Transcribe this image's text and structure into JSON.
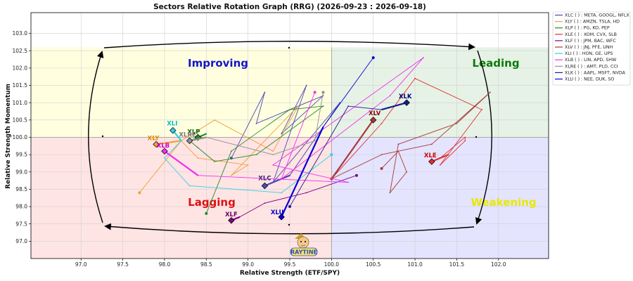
{
  "chart_data": {
    "type": "scatter",
    "title": "Sectors Relative Rotation Graph (RRG) (2026-09-23 : 2026-09-18)",
    "xlabel": "Relative Strength (ETF/SPY)",
    "ylabel": "Relative Strength Momentum",
    "xlim": [
      96.4,
      102.6
    ],
    "ylim": [
      96.5,
      103.6
    ],
    "x_ticks": [
      "97.0",
      "97.5",
      "98.0",
      "98.5",
      "99.0",
      "99.5",
      "100.0",
      "100.5",
      "101.0",
      "101.5",
      "102.0"
    ],
    "y_ticks": [
      "97.0",
      "97.5",
      "98.0",
      "98.5",
      "99.0",
      "99.5",
      "100.0",
      "100.5",
      "101.0",
      "101.5",
      "102.0",
      "102.5",
      "103.0"
    ],
    "center": [
      100,
      100
    ],
    "grid": true,
    "legend_position": "outside-right",
    "quadrants": [
      {
        "name": "Improving",
        "color": "#1414c8",
        "bg": "#ffffe0"
      },
      {
        "name": "Leading",
        "color": "#0a7a0a",
        "bg": "#e6f2e6"
      },
      {
        "name": "Lagging",
        "color": "#dd1111",
        "bg": "#ffe4e4"
      },
      {
        "name": "Weakening",
        "color": "#e8e800",
        "bg": "#e4e4ff"
      }
    ],
    "series": [
      {
        "name": "XLC",
        "legend": "XLC ( ) : META, GOOGL, NFLX",
        "color": "#4a4ab0",
        "label_color": "#222266",
        "points": [
          [
            98.8,
            99.4
          ],
          [
            99.2,
            101.3
          ],
          [
            99.1,
            100.4
          ],
          [
            99.9,
            101.2
          ],
          [
            99.4,
            100.1
          ],
          [
            99.7,
            101.5
          ],
          [
            99.3,
            98.7
          ],
          [
            100.1,
            101.0
          ],
          [
            99.5,
            98.9
          ],
          [
            99.2,
            98.6
          ]
        ]
      },
      {
        "name": "XLY",
        "legend": "XLY ( ) : AMZN, TSLA, HD",
        "color": "#f0a030",
        "label_color": "#e08a00",
        "points": [
          [
            97.7,
            98.4
          ],
          [
            98.2,
            99.9
          ],
          [
            98.4,
            99.4
          ],
          [
            99.0,
            99.2
          ],
          [
            98.8,
            98.9
          ],
          [
            99.6,
            100.9
          ],
          [
            99.3,
            99.6
          ],
          [
            98.6,
            100.5
          ],
          [
            98.2,
            99.9
          ],
          [
            97.9,
            99.8
          ]
        ]
      },
      {
        "name": "XLP",
        "legend": "XLP ( ) : PG, KO, PEP",
        "color": "#228b22",
        "label_color": "#0a6a0a",
        "points": [
          [
            98.5,
            97.8
          ],
          [
            98.8,
            99.6
          ],
          [
            99.5,
            100.8
          ],
          [
            99.9,
            100.9
          ],
          [
            99.1,
            99.5
          ],
          [
            98.6,
            99.3
          ],
          [
            98.4,
            99.7
          ],
          [
            98.3,
            99.9
          ],
          [
            98.5,
            100.1
          ],
          [
            98.4,
            100.0
          ]
        ]
      },
      {
        "name": "XLE",
        "legend": "XLE ( ) : XOM, CVX, SLB",
        "color": "#e03030",
        "label_color": "#cc0000",
        "points": [
          [
            100.0,
            98.8
          ],
          [
            100.6,
            100.4
          ],
          [
            101.0,
            101.7
          ],
          [
            101.8,
            100.8
          ],
          [
            101.3,
            99.2
          ],
          [
            101.6,
            99.9
          ],
          [
            101.6,
            100.0
          ],
          [
            101.3,
            99.4
          ],
          [
            101.4,
            99.5
          ],
          [
            101.2,
            99.3
          ]
        ]
      },
      {
        "name": "XLF",
        "legend": "XLF ( ) : JPM, BAC, WFC",
        "color": "#800080",
        "label_color": "#660066",
        "points": [
          [
            100.3,
            98.9
          ],
          [
            99.7,
            98.4
          ],
          [
            99.2,
            98.1
          ],
          [
            98.9,
            97.7
          ],
          [
            98.8,
            97.6
          ]
        ]
      },
      {
        "name": "XLV",
        "legend": "XLV ( ) : JNJ, PFE, UNH",
        "color": "#a83838",
        "label_color": "#8b0000",
        "points": [
          [
            100.6,
            99.1
          ],
          [
            100.8,
            99.6
          ],
          [
            100.9,
            99.0
          ],
          [
            100.7,
            98.4
          ],
          [
            100.8,
            99.8
          ],
          [
            101.5,
            100.4
          ],
          [
            101.9,
            101.3
          ],
          [
            101.2,
            99.8
          ],
          [
            100.6,
            99.5
          ],
          [
            100.0,
            98.8
          ],
          [
            100.5,
            100.5
          ]
        ]
      },
      {
        "name": "XLI",
        "legend": "XLI ( ) : HON, GE, UPS",
        "color": "#30d0e8",
        "label_color": "#00bcd4",
        "points": [
          [
            100.0,
            99.5
          ],
          [
            99.4,
            98.4
          ],
          [
            98.3,
            98.6
          ],
          [
            98.0,
            99.4
          ],
          [
            98.2,
            99.9
          ],
          [
            98.1,
            100.2
          ]
        ]
      },
      {
        "name": "XLB",
        "legend": "XLB ( ) : LIN, APD, SHW",
        "color": "#f030f0",
        "label_color": "#cc00cc",
        "points": [
          [
            99.8,
            101.3
          ],
          [
            99.4,
            98.8
          ],
          [
            100.7,
            101.2
          ],
          [
            101.1,
            102.3
          ],
          [
            99.3,
            99.2
          ],
          [
            100.2,
            98.7
          ],
          [
            98.4,
            98.9
          ],
          [
            98.0,
            99.6
          ]
        ]
      },
      {
        "name": "XLRE",
        "legend": "XLRE ( ) : AMT, PLD, CCI",
        "color": "#909090",
        "label_color": "#777777",
        "points": [
          [
            99.9,
            101.3
          ],
          [
            99.8,
            99.9
          ],
          [
            99.3,
            99.5
          ],
          [
            98.5,
            100.0
          ],
          [
            98.3,
            99.9
          ]
        ]
      },
      {
        "name": "XLK",
        "legend": "XLK ( ) : AAPL, MSFT, NVDA",
        "color": "#1c1c8c",
        "label_color": "#000080",
        "points": [
          [
            99.5,
            98.0
          ],
          [
            100.2,
            100.9
          ],
          [
            100.6,
            100.8
          ],
          [
            100.9,
            101.0
          ]
        ]
      },
      {
        "name": "XLU",
        "legend": "XLU ( ) : NEE, DUK, SO",
        "color": "#0000dd",
        "label_color": "#0000cc",
        "points": [
          [
            100.5,
            102.3
          ],
          [
            99.9,
            100.3
          ],
          [
            99.4,
            97.7
          ]
        ]
      }
    ]
  },
  "logo": {
    "text": "RAYTINE"
  }
}
